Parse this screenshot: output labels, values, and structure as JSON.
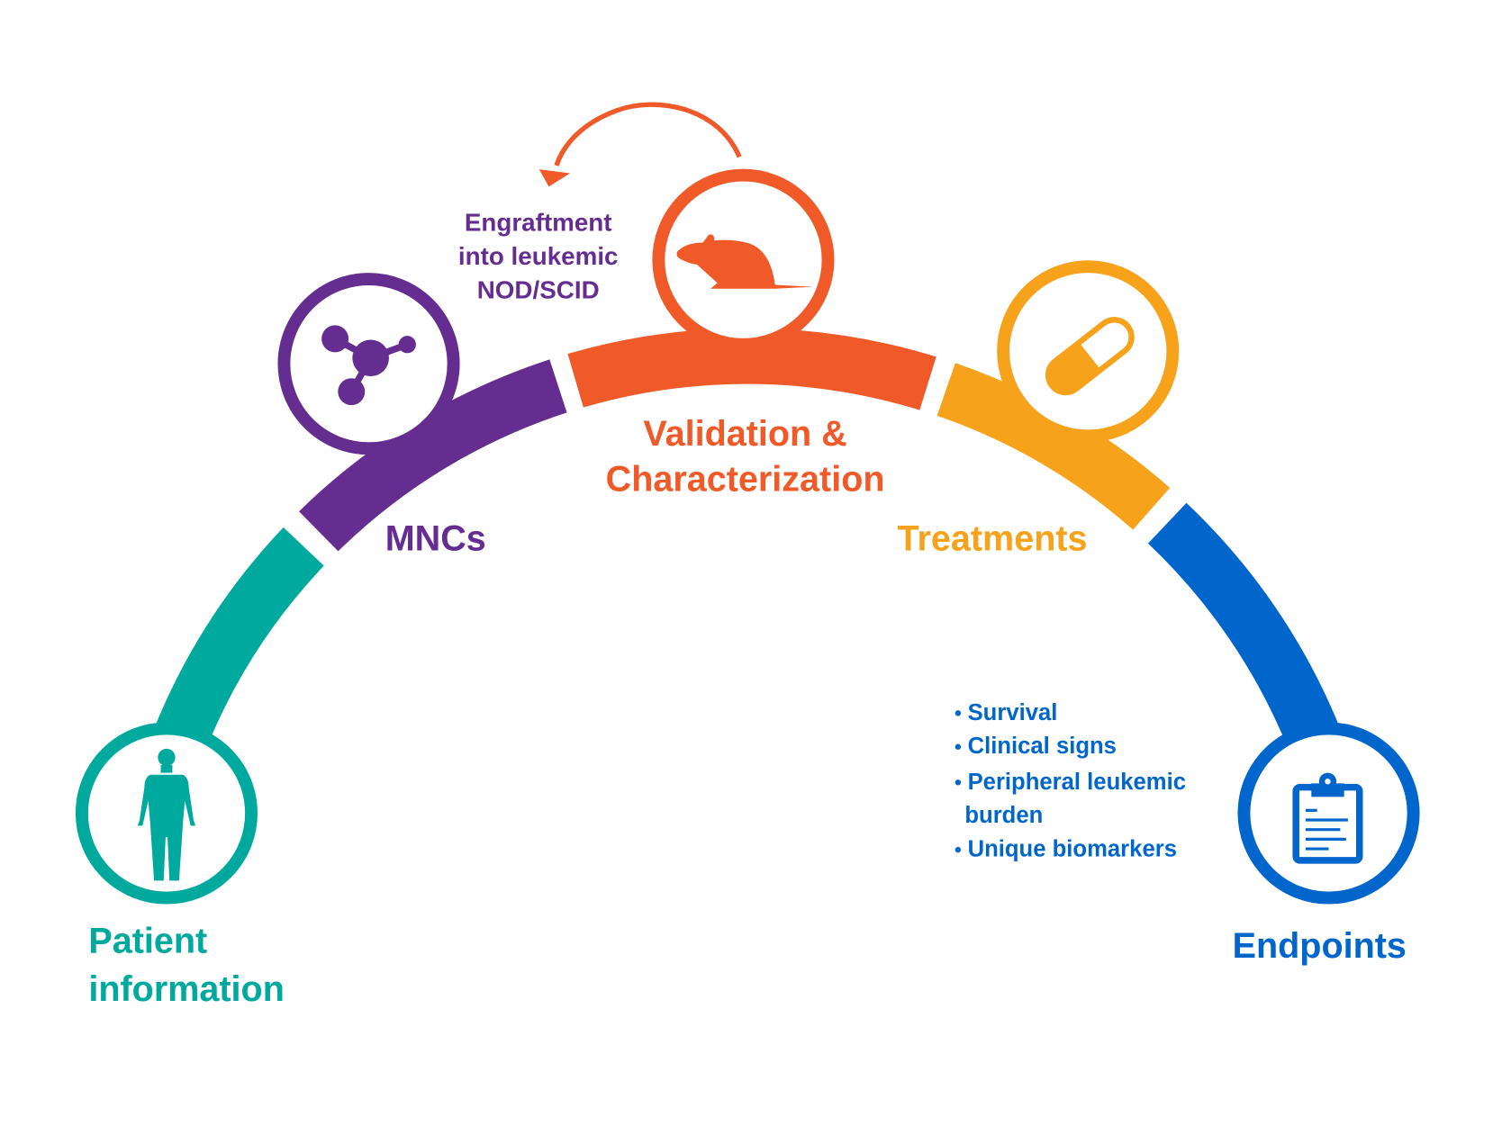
{
  "colors": {
    "patient": "#00A99D",
    "mncs": "#662D91",
    "validation": "#F05A28",
    "treatments": "#F7A21B",
    "endpoints": "#0066CC"
  },
  "stages": {
    "patient": {
      "line1": "Patient",
      "line2": "information",
      "icon": "human-body-icon"
    },
    "mncs": {
      "label": "MNCs",
      "icon": "molecule-icon"
    },
    "validation": {
      "line1": "Validation &",
      "line2": "Characterization",
      "icon": "mouse-icon"
    },
    "treatments": {
      "label": "Treatments",
      "icon": "pill-capsule-icon"
    },
    "endpoints": {
      "label": "Endpoints",
      "icon": "clipboard-icon"
    }
  },
  "engraftment": {
    "line1": "Engraftment",
    "line2": "into leukemic",
    "line3": "NOD/SCID",
    "icon": "curved-arrow-icon"
  },
  "endpoint_items": [
    "Survival",
    "Clinical signs",
    "Peripheral leukemic",
    "burden",
    "Unique biomarkers"
  ]
}
